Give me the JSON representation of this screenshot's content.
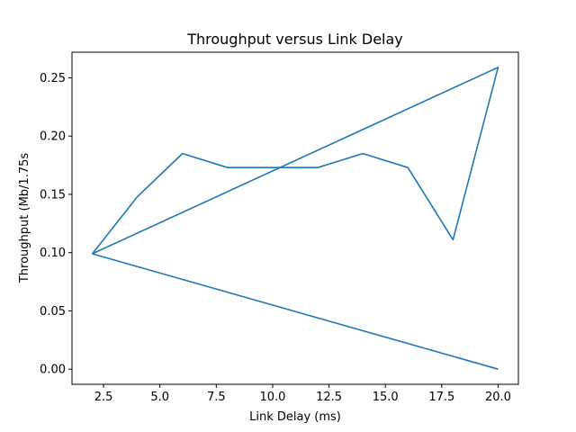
{
  "chart_data": {
    "type": "line",
    "title": "Throughput versus Link Delay",
    "xlabel": "Link Delay (ms)",
    "ylabel": "Throughput (Mb/1.75s",
    "xlim": [
      1.1,
      20.9
    ],
    "ylim": [
      -0.013,
      0.272
    ],
    "xticks": [
      2.5,
      5.0,
      7.5,
      10.0,
      12.5,
      15.0,
      17.5,
      20.0
    ],
    "xtick_labels": [
      "2.5",
      "5.0",
      "7.5",
      "10.0",
      "12.5",
      "15.0",
      "17.5",
      "20.0"
    ],
    "yticks": [
      0.0,
      0.05,
      0.1,
      0.15,
      0.2,
      0.25
    ],
    "ytick_labels": [
      "0.00",
      "0.05",
      "0.10",
      "0.15",
      "0.20",
      "0.25"
    ],
    "grid": false,
    "series": [
      {
        "color": "#1f77b4",
        "x": [
          2,
          4,
          6,
          8,
          10,
          12,
          14,
          16,
          18,
          20,
          2
        ],
        "y": [
          0.099,
          0.148,
          0.185,
          0.173,
          0.173,
          0.173,
          0.185,
          0.173,
          0.111,
          0.259,
          0.099
        ]
      },
      {
        "color": "#1f77b4",
        "x": [
          2,
          20
        ],
        "y": [
          0.099,
          0.0
        ]
      }
    ]
  }
}
